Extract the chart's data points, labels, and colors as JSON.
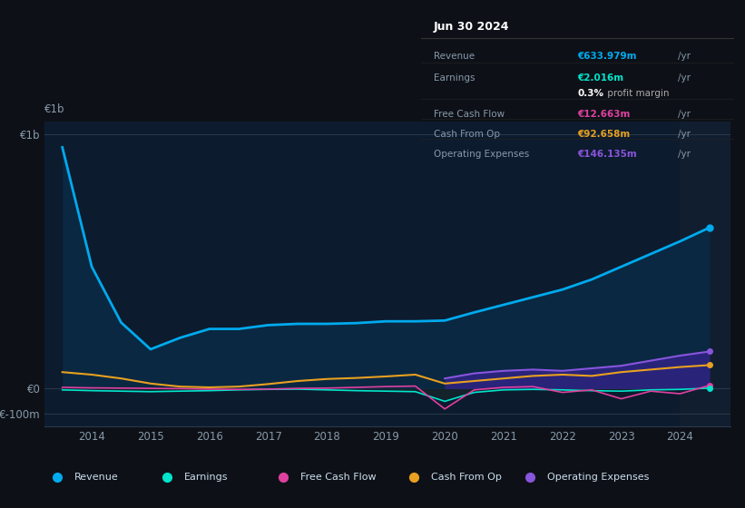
{
  "bg_color": "#0d1117",
  "chart_bg": "#0d1b2e",
  "x_years": [
    2013.5,
    2014.0,
    2014.5,
    2015.0,
    2015.5,
    2016.0,
    2016.5,
    2017.0,
    2017.5,
    2018.0,
    2018.5,
    2019.0,
    2019.5,
    2020.0,
    2020.5,
    2021.0,
    2021.5,
    2022.0,
    2022.5,
    2023.0,
    2023.5,
    2024.0,
    2024.5
  ],
  "revenue": [
    950,
    480,
    260,
    155,
    200,
    235,
    235,
    250,
    255,
    255,
    258,
    265,
    265,
    268,
    300,
    330,
    360,
    390,
    430,
    480,
    530,
    580,
    634
  ],
  "earnings": [
    -5,
    -8,
    -10,
    -12,
    -10,
    -8,
    -5,
    -3,
    -2,
    -5,
    -8,
    -10,
    -12,
    -50,
    -15,
    -5,
    -3,
    -5,
    -8,
    -10,
    -5,
    -3,
    2
  ],
  "free_cash_flow": [
    5,
    3,
    2,
    1,
    0,
    -2,
    -3,
    -2,
    1,
    2,
    5,
    8,
    10,
    -80,
    -5,
    5,
    8,
    -15,
    -5,
    -40,
    -10,
    -20,
    12.663
  ],
  "cash_from_op": [
    65,
    55,
    40,
    20,
    8,
    5,
    8,
    18,
    30,
    38,
    42,
    48,
    55,
    20,
    30,
    40,
    50,
    55,
    50,
    65,
    75,
    85,
    92.658
  ],
  "operating_expenses": [
    null,
    null,
    null,
    null,
    null,
    null,
    null,
    null,
    null,
    null,
    null,
    null,
    null,
    40,
    60,
    70,
    75,
    70,
    80,
    90,
    110,
    130,
    146.135
  ],
  "revenue_color": "#00aaee",
  "earnings_color": "#00e5cc",
  "fcf_color": "#e040a0",
  "cfo_color": "#e8a020",
  "opex_color": "#8855dd",
  "ylim_min": -150,
  "ylim_max": 1050,
  "xlim_min": 2013.2,
  "xlim_max": 2024.85,
  "xticks": [
    2014,
    2015,
    2016,
    2017,
    2018,
    2019,
    2020,
    2021,
    2022,
    2023,
    2024
  ],
  "info_box": {
    "date": "Jun 30 2024",
    "revenue_val": "€633.979m",
    "earnings_val": "€2.016m",
    "profit_margin": "0.3%",
    "fcf_val": "€12.663m",
    "cfo_val": "€92.658m",
    "opex_val": "€146.135m"
  },
  "legend_items": [
    {
      "label": "Revenue",
      "color": "#00aaee"
    },
    {
      "label": "Earnings",
      "color": "#00e5cc"
    },
    {
      "label": "Free Cash Flow",
      "color": "#e040a0"
    },
    {
      "label": "Cash From Op",
      "color": "#e8a020"
    },
    {
      "label": "Operating Expenses",
      "color": "#8855dd"
    }
  ]
}
